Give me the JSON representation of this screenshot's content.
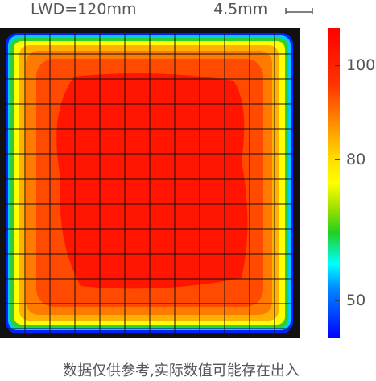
{
  "chart_data": {
    "type": "heatmap",
    "title": "LWD=120mm",
    "scale_label": "4.5mm",
    "zlim": [
      42,
      108
    ],
    "zticks": [
      100,
      80,
      50
    ],
    "note": "数据仅供参考,实际数值可能存在出入"
  }
}
